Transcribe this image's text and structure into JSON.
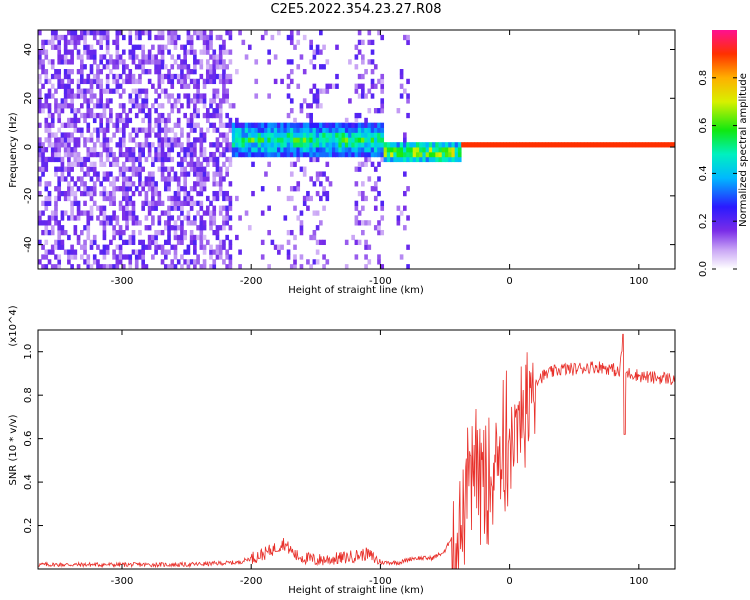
{
  "title": "C2E5.2022.354.23.27.R08",
  "chart_data": [
    {
      "type": "heatmap",
      "xlabel": "Height of straight line (km)",
      "ylabel": "Frequency (Hz)",
      "xlim": [
        -365,
        128
      ],
      "ylim": [
        -50,
        48
      ],
      "x_ticks": [
        -300,
        -200,
        -100,
        0,
        100
      ],
      "y_ticks": [
        -40,
        -20,
        0,
        20,
        40
      ],
      "colorbar": {
        "label": "Normalized spectral amplitude",
        "range": [
          0,
          1
        ],
        "ticks": [
          0.0,
          0.2,
          0.4,
          0.6,
          0.8
        ]
      },
      "signal_band": [
        {
          "x_start": -215,
          "x_end": -100,
          "center_freq": 2,
          "half_width": 8,
          "peak_amplitude": 0.55
        },
        {
          "x_start": -100,
          "x_end": -40,
          "center_freq": -3,
          "half_width": 5,
          "peak_amplitude": 0.7
        },
        {
          "x_start": -40,
          "x_end": 128,
          "center_freq": 0,
          "half_width": 2,
          "peak_amplitude": 0.9
        }
      ]
    },
    {
      "type": "line",
      "xlabel": "Height of straight line (km)",
      "ylabel": "SNR (10 * v/v)",
      "y_exponent_label": "(x10^4)",
      "xlim": [
        -365,
        128
      ],
      "ylim": [
        0,
        1.1
      ],
      "x_ticks": [
        -300,
        -200,
        -100,
        0,
        100
      ],
      "y_ticks": [
        0.2,
        0.4,
        0.6,
        0.8,
        1.0
      ],
      "series": [
        {
          "color": "#e8302a",
          "x": [
            -365,
            -300,
            -250,
            -210,
            -190,
            -180,
            -175,
            -165,
            -150,
            -130,
            -110,
            -100,
            -85,
            -75,
            -60,
            -50,
            -45,
            -40,
            -35,
            -30,
            -25,
            -20,
            -15,
            -10,
            -5,
            0,
            5,
            10,
            15,
            20,
            30,
            40,
            50,
            60,
            70,
            80,
            85,
            88,
            90,
            95,
            100,
            110,
            120,
            128
          ],
          "y": [
            0.02,
            0.02,
            0.02,
            0.03,
            0.07,
            0.1,
            0.12,
            0.06,
            0.04,
            0.05,
            0.07,
            0.03,
            0.03,
            0.05,
            0.05,
            0.08,
            0.15,
            0.28,
            0.42,
            0.58,
            0.62,
            0.6,
            0.62,
            0.65,
            0.7,
            0.76,
            0.8,
            0.83,
            0.85,
            0.87,
            0.9,
            0.92,
            0.92,
            0.93,
            0.93,
            0.92,
            0.9,
            1.08,
            0.9,
            0.9,
            0.89,
            0.88,
            0.88,
            0.87
          ]
        }
      ]
    }
  ]
}
